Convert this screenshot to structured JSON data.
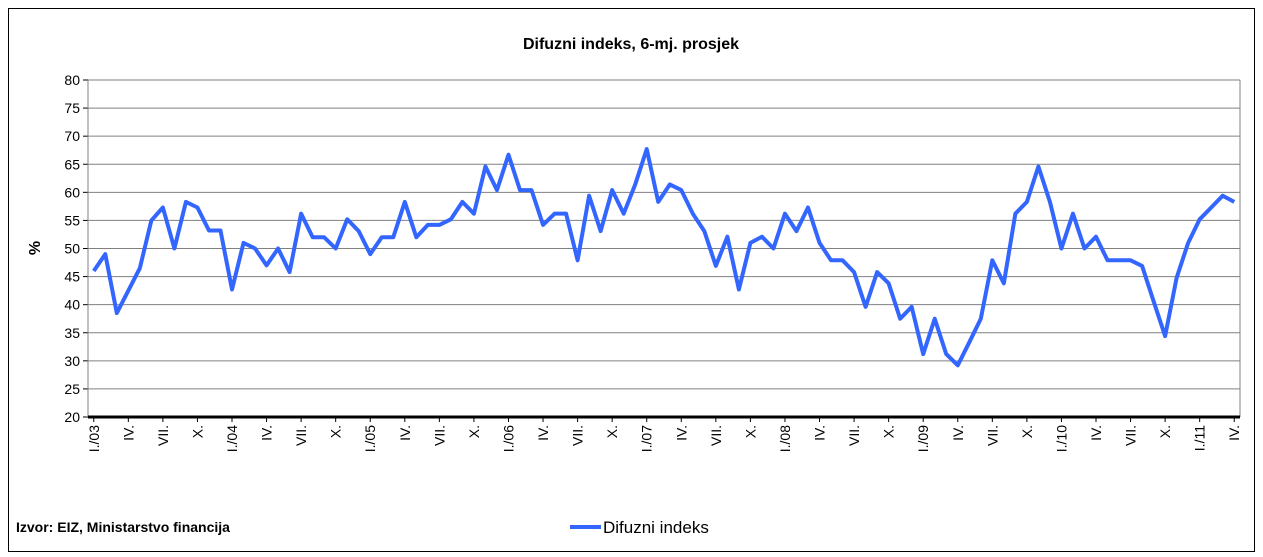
{
  "chart_data": {
    "type": "line",
    "title": "Difuzni indeks, 6-mj. prosjek",
    "y_label": "%",
    "source": "Izvor: EIZ, Ministarstvo financija",
    "categories": [
      "I./03",
      null,
      null,
      "IV.",
      null,
      null,
      "VII.",
      null,
      null,
      "X.",
      null,
      null,
      "I./04",
      null,
      null,
      "IV.",
      null,
      null,
      "VII.",
      null,
      null,
      "X.",
      null,
      null,
      "I./05",
      null,
      null,
      "IV.",
      null,
      null,
      "VII.",
      null,
      null,
      "X.",
      null,
      null,
      "I./06",
      null,
      null,
      "IV.",
      null,
      null,
      "VII.",
      null,
      null,
      "X.",
      null,
      null,
      "I./07",
      null,
      null,
      "IV.",
      null,
      null,
      "VII.",
      null,
      null,
      "X.",
      null,
      null,
      "I./08",
      null,
      null,
      "IV.",
      null,
      null,
      "VII.",
      null,
      null,
      "X.",
      null,
      null,
      "I./09",
      null,
      null,
      "IV.",
      null,
      null,
      "VII.",
      null,
      null,
      "X.",
      null,
      null,
      "I./10",
      null,
      null,
      "IV.",
      null,
      null,
      "VII.",
      null,
      null,
      "X.",
      null,
      null,
      "I./11",
      null,
      null,
      "IV."
    ],
    "series": [
      {
        "name": "Difuzni indeks",
        "color": "#3366ff",
        "values": [
          46,
          49,
          38.5,
          42.5,
          46.5,
          55,
          57.3,
          50,
          58.3,
          57.3,
          53.2,
          53.2,
          42.7,
          51,
          50,
          47,
          50,
          45.8,
          56.2,
          52,
          52,
          50,
          55.2,
          53.1,
          49,
          52,
          52,
          58.3,
          52,
          54.2,
          54.2,
          55.2,
          58.3,
          56.2,
          64.6,
          60.4,
          66.7,
          60.4,
          60.4,
          54.2,
          56.2,
          56.2,
          47.9,
          59.4,
          53.1,
          60.4,
          56.2,
          61.4,
          67.7,
          58.3,
          61.4,
          60.4,
          56.2,
          53.1,
          46.9,
          52.1,
          42.7,
          51,
          52.1,
          50,
          56.2,
          53.1,
          57.3,
          51,
          47.9,
          47.9,
          45.8,
          39.6,
          45.8,
          43.8,
          37.5,
          39.6,
          31.2,
          37.5,
          31.2,
          29.2,
          33.3,
          37.5,
          47.9,
          43.8,
          56.2,
          58.3,
          64.6,
          58.3,
          50,
          56.2,
          50,
          52.1,
          47.9,
          47.9,
          47.9,
          46.9,
          40.6,
          34.4,
          44.8,
          51,
          55.2,
          57.3,
          59.4,
          58.3
        ]
      }
    ],
    "ylim": [
      20,
      80
    ],
    "yticks": [
      20,
      25,
      30,
      35,
      40,
      45,
      50,
      55,
      60,
      65,
      70,
      75,
      80
    ],
    "grid": true
  }
}
